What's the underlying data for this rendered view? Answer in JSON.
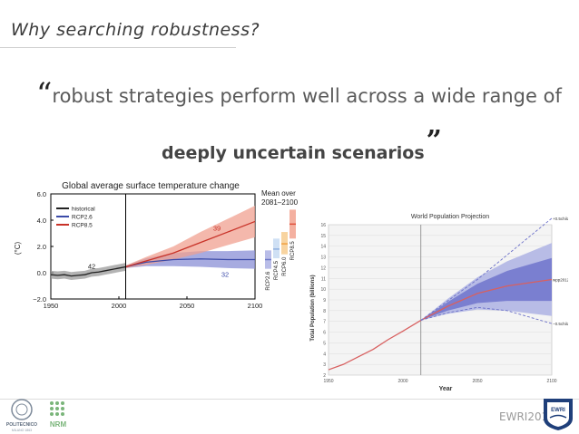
{
  "header": {
    "title": "Why searching robustness?"
  },
  "quote": {
    "open_mark": "“",
    "line1": "robust strategies perform well across a wide range of",
    "line2": "deeply uncertain scenarios",
    "close_mark": "”"
  },
  "footer": {
    "text": "EWRI2016",
    "left_logo_lines": [
      "POLITECNICO",
      "MILANO 1863"
    ],
    "mid_logo_text": "NRM",
    "right_logo_text": "EWRI"
  },
  "colors": {
    "historical": "#222222",
    "rcp26": "#3b4aa8",
    "rcp85": "#c83228",
    "rcp45": "#8fb0e0",
    "rcp60": "#f0a040"
  },
  "chart_data": [
    {
      "type": "line",
      "title": "Global average surface temperature change",
      "ylabel": "(°C)",
      "xlim": [
        1950,
        2100
      ],
      "ylim": [
        -2.0,
        6.0
      ],
      "x_ticks": [
        1950,
        2000,
        2050,
        2100
      ],
      "y_ticks": [
        -2.0,
        0.0,
        2.0,
        4.0,
        6.0
      ],
      "y_tick_labels": [
        "−2.0",
        "0.0",
        "2.0",
        "4.0",
        "6.0"
      ],
      "legend": [
        "historical",
        "RCP2.6",
        "RCP8.5"
      ],
      "legend_position": "top-left",
      "vertical_line_x": 2005,
      "series": [
        {
          "name": "historical",
          "x": [
            1950,
            1955,
            1960,
            1965,
            1970,
            1975,
            1980,
            1985,
            1990,
            1995,
            2000,
            2005
          ],
          "values": [
            -0.15,
            -0.2,
            -0.15,
            -0.25,
            -0.2,
            -0.15,
            0.0,
            0.05,
            0.15,
            0.25,
            0.35,
            0.45
          ],
          "spread": 0.3
        },
        {
          "name": "RCP2.6",
          "x": [
            2005,
            2020,
            2040,
            2060,
            2080,
            2100
          ],
          "values": [
            0.45,
            0.8,
            1.0,
            1.05,
            1.0,
            1.0
          ],
          "spread": [
            0.1,
            0.3,
            0.5,
            0.6,
            0.65,
            0.7
          ]
        },
        {
          "name": "RCP8.5",
          "x": [
            2005,
            2020,
            2040,
            2060,
            2080,
            2100
          ],
          "values": [
            0.45,
            0.9,
            1.5,
            2.3,
            3.1,
            3.9
          ],
          "spread": [
            0.1,
            0.3,
            0.5,
            0.8,
            1.0,
            1.2
          ]
        }
      ],
      "annotations": [
        {
          "text": "42",
          "x": 1980,
          "y": 0.3
        },
        {
          "text": "39",
          "x": 2072,
          "y": 3.2
        },
        {
          "text": "32",
          "x": 2078,
          "y": -0.3
        }
      ],
      "side_panel": {
        "title_line1": "Mean over",
        "title_line2": "2081–2100",
        "labels": [
          "RCP2.6",
          "RCP4.5",
          "RCP6.0",
          "RCP8.5"
        ],
        "means": [
          1.0,
          1.8,
          2.2,
          3.7
        ],
        "ranges": [
          [
            0.3,
            1.7
          ],
          [
            1.1,
            2.6
          ],
          [
            1.4,
            3.1
          ],
          [
            2.6,
            4.8
          ]
        ]
      }
    },
    {
      "type": "line",
      "title": "World Population Projection",
      "xlabel": "Year",
      "ylabel": "Total Population (billions)",
      "xlim": [
        1950,
        2100
      ],
      "ylim": [
        2,
        16
      ],
      "x_ticks": [
        1950,
        2000,
        2050,
        2100
      ],
      "y_ticks": [
        2,
        3,
        4,
        5,
        6,
        7,
        8,
        9,
        10,
        11,
        12,
        13,
        14,
        15,
        16
      ],
      "vertical_line_x": 2012,
      "series": [
        {
          "name": "wpp2012",
          "x": [
            1950,
            1960,
            1970,
            1980,
            1990,
            2000,
            2012,
            2030,
            2050,
            2070,
            2100
          ],
          "values": [
            2.5,
            3.0,
            3.7,
            4.4,
            5.3,
            6.1,
            7.1,
            8.4,
            9.6,
            10.3,
            10.9
          ],
          "band80": [
            0,
            0,
            0,
            0,
            0,
            0,
            0,
            0.4,
            0.9,
            1.4,
            2.0
          ],
          "band95": [
            0,
            0,
            0,
            0,
            0,
            0,
            0,
            0.7,
            1.5,
            2.3,
            3.4
          ]
        },
        {
          "name": "+0.5child",
          "x": [
            2012,
            2050,
            2100
          ],
          "values": [
            7.1,
            10.9,
            16.6
          ]
        },
        {
          "name": "−0.5child",
          "x": [
            2012,
            2030,
            2050,
            2070,
            2100
          ],
          "values": [
            7.1,
            7.8,
            8.3,
            8.0,
            6.8
          ]
        }
      ]
    }
  ]
}
